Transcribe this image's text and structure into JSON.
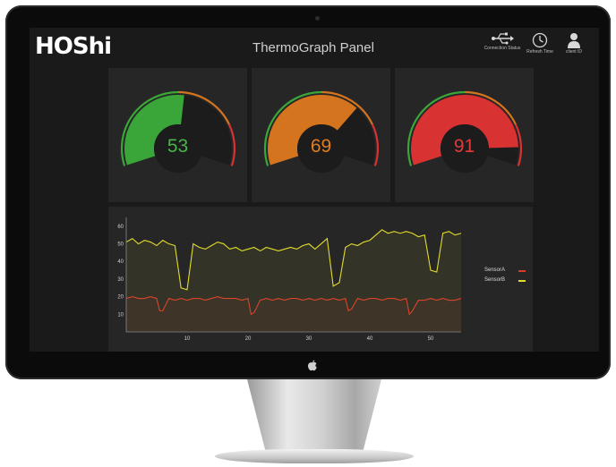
{
  "app": {
    "logo_text": "HOShi",
    "panel_title": "ThermoGraph Panel"
  },
  "header_icons": [
    {
      "icon": "usb-icon",
      "label": "Connection Status"
    },
    {
      "icon": "clock-icon",
      "label": "Refresh Time"
    },
    {
      "icon": "user-icon",
      "label": "client ID"
    }
  ],
  "gauges": [
    {
      "value": "53",
      "level": 0.53,
      "color": "#3aa639",
      "text_color": "#49b548"
    },
    {
      "value": "69",
      "level": 0.69,
      "color": "#d5741e",
      "text_color": "#e07d22"
    },
    {
      "value": "91",
      "level": 0.91,
      "color": "#d93232",
      "text_color": "#e23a3a"
    }
  ],
  "chart_data": {
    "type": "line",
    "title": "",
    "xlabel": "",
    "ylabel": "",
    "xlim": [
      0,
      55
    ],
    "ylim": [
      0,
      65
    ],
    "x_ticks": [
      10,
      20,
      30,
      40,
      50
    ],
    "y_ticks": [
      10,
      20,
      30,
      40,
      50,
      60
    ],
    "legend_position": "right",
    "grid": false,
    "series": [
      {
        "name": "SensorA",
        "color": "#d93a2b",
        "x": [
          0,
          1,
          2,
          3,
          4,
          5,
          5.5,
          6,
          7,
          8,
          9,
          10,
          11,
          12,
          13,
          14,
          15,
          16,
          17,
          18,
          19,
          20,
          20.5,
          21,
          22,
          23,
          24,
          25,
          26,
          27,
          28,
          29,
          30,
          31,
          32,
          33,
          34,
          35,
          36,
          36.5,
          37,
          38,
          39,
          40,
          41,
          42,
          43,
          44,
          45,
          46,
          46.5,
          47,
          48,
          49,
          50,
          51,
          52,
          53,
          54,
          55
        ],
        "y": [
          19,
          20,
          19,
          19,
          20,
          19,
          12,
          12,
          19,
          18,
          19,
          18,
          19,
          19,
          18,
          19,
          20,
          19,
          19,
          19,
          18,
          19,
          10,
          11,
          18,
          19,
          18,
          19,
          18,
          19,
          19,
          18,
          19,
          18,
          19,
          18,
          19,
          18,
          19,
          12,
          13,
          19,
          18,
          19,
          19,
          18,
          19,
          19,
          18,
          19,
          10,
          12,
          18,
          18,
          19,
          18,
          19,
          18,
          18,
          19
        ]
      },
      {
        "name": "SensorB",
        "color": "#e3dc2a",
        "x": [
          0,
          1,
          2,
          3,
          4,
          5,
          6,
          7,
          8,
          9,
          10,
          11,
          12,
          13,
          14,
          15,
          16,
          17,
          18,
          19,
          20,
          21,
          22,
          23,
          24,
          25,
          26,
          27,
          28,
          29,
          30,
          31,
          32,
          33,
          34,
          35,
          36,
          37,
          38,
          39,
          40,
          41,
          42,
          43,
          44,
          45,
          46,
          47,
          48,
          49,
          50,
          51,
          52,
          53,
          54,
          55
        ],
        "y": [
          51,
          53,
          50,
          52,
          51,
          49,
          52,
          50,
          49,
          25,
          24,
          50,
          48,
          47,
          49,
          51,
          50,
          47,
          48,
          46,
          47,
          48,
          46,
          48,
          47,
          46,
          47,
          48,
          47,
          49,
          50,
          47,
          50,
          53,
          26,
          28,
          48,
          50,
          49,
          51,
          52,
          55,
          58,
          56,
          57,
          56,
          57,
          56,
          54,
          55,
          35,
          34,
          56,
          57,
          55,
          56
        ]
      }
    ]
  }
}
